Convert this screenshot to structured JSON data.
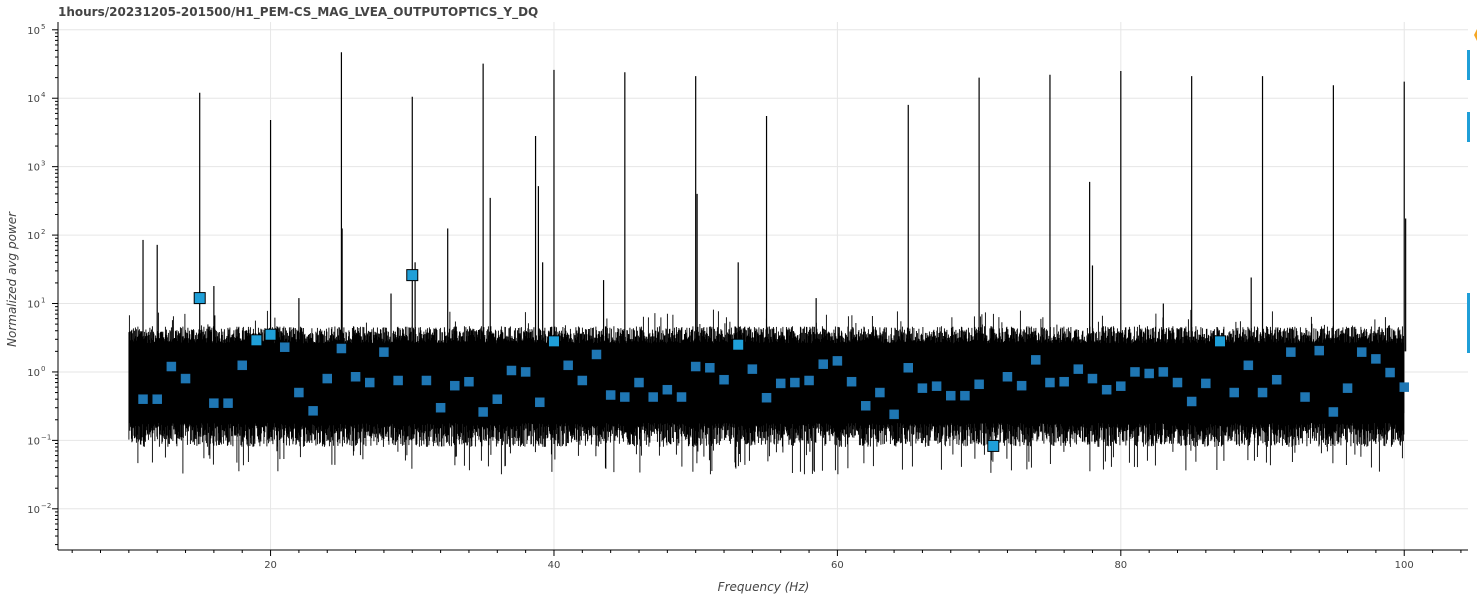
{
  "chart_data": {
    "type": "line",
    "title": "1hours/20231205-201500/H1_PEM-CS_MAG_LVEA_OUTPUTOPTICS_Y_DQ",
    "xlabel": "Frequency (Hz)",
    "ylabel": "Normalized avg power",
    "x_range": [
      5,
      104.5
    ],
    "y_range": [
      0.0025,
      130000
    ],
    "y_scale": "log",
    "grid": true,
    "x_ticks": [
      20,
      40,
      60,
      80,
      100
    ],
    "y_ticks": [
      {
        "base": "10",
        "exp": "−2",
        "value": 0.01
      },
      {
        "base": "10",
        "exp": "−1",
        "value": 0.1
      },
      {
        "base": "10",
        "exp": "0",
        "value": 1
      },
      {
        "base": "10",
        "exp": "1",
        "value": 10
      },
      {
        "base": "10",
        "exp": "2",
        "value": 100
      },
      {
        "base": "10",
        "exp": "3",
        "value": 1000
      },
      {
        "base": "10",
        "exp": "4",
        "value": 10000
      },
      {
        "base": "10",
        "exp": "5",
        "value": 100000
      }
    ],
    "colors": {
      "line": "#000000",
      "marker": "#1f77b4",
      "marker_edge": "#000000",
      "grid": "#e6e6e6",
      "accent": "#1f9fd8",
      "star": "#f5a623"
    },
    "noise_band": {
      "x_start": 10,
      "x_end": 100,
      "median": 0.8,
      "upper": 3.5,
      "lower": 0.12
    },
    "spectrum_peaks": [
      {
        "x": 11.0,
        "y": 85
      },
      {
        "x": 12.0,
        "y": 72
      },
      {
        "x": 15.0,
        "y": 12000
      },
      {
        "x": 16.0,
        "y": 18
      },
      {
        "x": 20.0,
        "y": 4800
      },
      {
        "x": 22.0,
        "y": 12
      },
      {
        "x": 25.0,
        "y": 47000
      },
      {
        "x": 25.05,
        "y": 125
      },
      {
        "x": 28.5,
        "y": 14
      },
      {
        "x": 30.0,
        "y": 10500
      },
      {
        "x": 30.2,
        "y": 40
      },
      {
        "x": 32.5,
        "y": 125
      },
      {
        "x": 35.0,
        "y": 32000
      },
      {
        "x": 35.5,
        "y": 350
      },
      {
        "x": 38.7,
        "y": 2800
      },
      {
        "x": 38.9,
        "y": 520
      },
      {
        "x": 39.2,
        "y": 40
      },
      {
        "x": 40.0,
        "y": 26000
      },
      {
        "x": 43.5,
        "y": 22
      },
      {
        "x": 45.0,
        "y": 24000
      },
      {
        "x": 50.0,
        "y": 21000
      },
      {
        "x": 50.1,
        "y": 400
      },
      {
        "x": 53.0,
        "y": 40
      },
      {
        "x": 55.0,
        "y": 5500
      },
      {
        "x": 58.5,
        "y": 12
      },
      {
        "x": 65.0,
        "y": 8000
      },
      {
        "x": 70.0,
        "y": 20000
      },
      {
        "x": 75.0,
        "y": 22000
      },
      {
        "x": 77.8,
        "y": 600
      },
      {
        "x": 78.0,
        "y": 36
      },
      {
        "x": 80.0,
        "y": 25000
      },
      {
        "x": 83.0,
        "y": 10
      },
      {
        "x": 85.0,
        "y": 21000
      },
      {
        "x": 89.2,
        "y": 24
      },
      {
        "x": 90.0,
        "y": 21000
      },
      {
        "x": 95.0,
        "y": 15500
      },
      {
        "x": 100.0,
        "y": 17500
      },
      {
        "x": 100.1,
        "y": 175
      }
    ],
    "series": [
      {
        "x": [
          11,
          12,
          13,
          14,
          15,
          16,
          17,
          18,
          19,
          20,
          21,
          22,
          23,
          24,
          25,
          26,
          27,
          28,
          29,
          30,
          31,
          32,
          33,
          34,
          35,
          36,
          37,
          38,
          39,
          40,
          41,
          42,
          43,
          44,
          45,
          46,
          47,
          48,
          49,
          50,
          51,
          52,
          53,
          54,
          55,
          56,
          57,
          58,
          59,
          60,
          61,
          62,
          63,
          64,
          65,
          66,
          67,
          68,
          69,
          70,
          71,
          72,
          73,
          74,
          75,
          76,
          77,
          78,
          79,
          80,
          81,
          82,
          83,
          84,
          85,
          86,
          87,
          88,
          89,
          90,
          91,
          92,
          93,
          94,
          95,
          96,
          97,
          98,
          99,
          100
        ],
        "y": [
          0.4,
          0.4,
          1.2,
          0.8,
          12,
          0.35,
          0.35,
          1.25,
          2.9,
          3.5,
          2.3,
          0.5,
          0.27,
          0.8,
          2.2,
          0.85,
          0.7,
          1.95,
          0.75,
          26,
          0.75,
          0.3,
          0.63,
          0.72,
          0.26,
          0.4,
          1.05,
          1.0,
          0.36,
          2.8,
          1.25,
          0.75,
          1.8,
          0.46,
          0.43,
          0.7,
          0.43,
          0.55,
          0.43,
          1.2,
          1.15,
          0.77,
          2.5,
          1.1,
          0.42,
          0.68,
          0.7,
          0.75,
          1.3,
          1.45,
          0.72,
          0.32,
          0.5,
          0.24,
          1.15,
          0.58,
          0.62,
          0.45,
          0.45,
          0.66,
          0.083,
          0.85,
          0.63,
          1.5,
          0.7,
          0.72,
          1.1,
          0.8,
          0.55,
          0.62,
          1.0,
          0.95,
          1.0,
          0.7,
          0.37,
          0.68,
          2.8,
          0.5,
          1.25,
          0.5,
          0.77,
          1.95,
          0.43,
          2.05,
          0.26,
          0.58,
          1.95,
          1.55,
          0.98,
          0.6
        ]
      }
    ]
  }
}
